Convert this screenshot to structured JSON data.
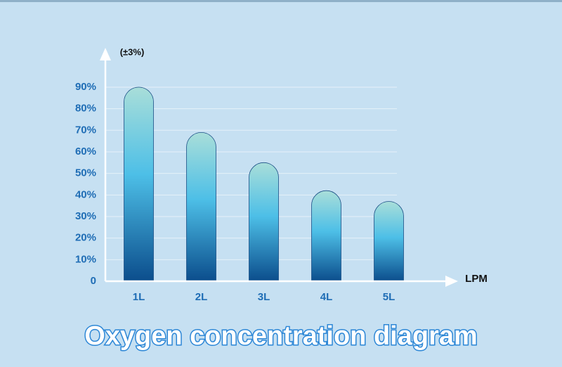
{
  "chart_data": {
    "type": "bar",
    "title": "Oxygen concentration diagram",
    "y_label": "(±3%)",
    "x_label": "LPM",
    "categories": [
      "1L",
      "2L",
      "3L",
      "4L",
      "5L"
    ],
    "values": [
      90,
      69,
      55,
      42,
      37
    ],
    "colors": [
      "#a9ded9",
      "#4dbfe7",
      "#0b4d8c"
    ],
    "ylim": [
      0,
      100
    ],
    "yticks": [
      0,
      {
        "value": 10,
        "label": "10%"
      },
      {
        "value": 20,
        "label": "20%"
      },
      {
        "value": 30,
        "label": "30%"
      },
      {
        "value": 40,
        "label": "40%"
      },
      {
        "value": 50,
        "label": "50%"
      },
      {
        "value": 60,
        "label": "60%"
      },
      {
        "value": 70,
        "label": "70%"
      },
      {
        "value": 80,
        "label": "80%"
      },
      {
        "value": 90,
        "label": "90%"
      }
    ],
    "grid": true
  }
}
